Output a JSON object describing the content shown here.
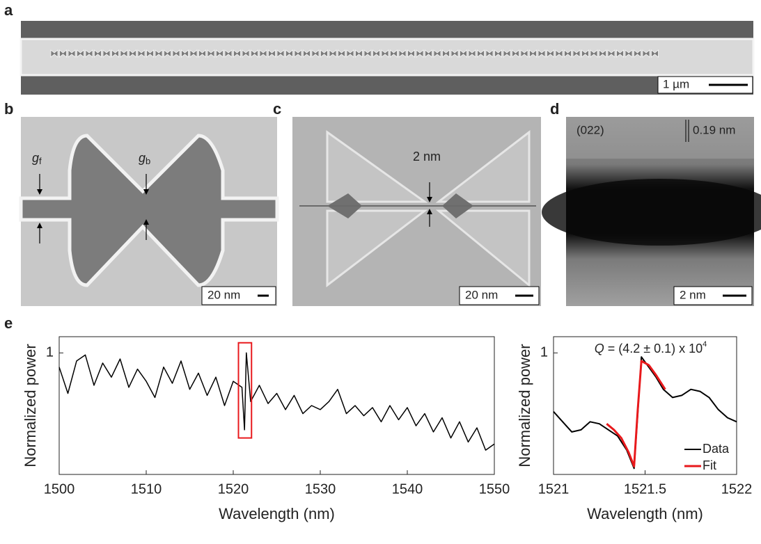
{
  "panels": {
    "a": "a",
    "b": "b",
    "c": "c",
    "d": "d",
    "e": "e"
  },
  "images": {
    "a": {
      "scale_bar": "1 µm"
    },
    "b": {
      "scale_bar": "20 nm",
      "gap_front": {
        "symbol": "g",
        "subscript": "f"
      },
      "gap_bowtie": {
        "symbol": "g",
        "subscript": "b"
      }
    },
    "c": {
      "scale_bar": "20 nm",
      "gap_label": "2 nm"
    },
    "d": {
      "scale_bar": "2 nm",
      "plane": "(022)",
      "spacing": "0.19 nm"
    }
  },
  "chart_data": [
    {
      "type": "line",
      "xlabel": "Wavelength (nm)",
      "ylabel": "Normalized power",
      "xlim": [
        1500,
        1550
      ],
      "ylim": [
        0.4,
        1.08
      ],
      "xticks": [
        1500,
        1510,
        1520,
        1530,
        1540,
        1550
      ],
      "yticks": [
        1
      ],
      "color": "#000000",
      "highlight_x": [
        1520.6,
        1522.1
      ],
      "highlight_y": [
        0.58,
        1.05
      ],
      "highlight_color": "#e8191c",
      "x": [
        1500,
        1501,
        1502,
        1503,
        1504,
        1505,
        1506,
        1507,
        1508,
        1509,
        1510,
        1511,
        1512,
        1513,
        1514,
        1515,
        1516,
        1517,
        1518,
        1519,
        1520,
        1521,
        1521.3,
        1521.5,
        1522,
        1523,
        1524,
        1525,
        1526,
        1527,
        1528,
        1529,
        1530,
        1531,
        1532,
        1533,
        1534,
        1535,
        1536,
        1537,
        1538,
        1539,
        1540,
        1541,
        1542,
        1543,
        1544,
        1545,
        1546,
        1547,
        1548,
        1549,
        1550
      ],
      "values": [
        0.93,
        0.8,
        0.96,
        0.99,
        0.84,
        0.95,
        0.88,
        0.97,
        0.83,
        0.92,
        0.86,
        0.78,
        0.93,
        0.85,
        0.96,
        0.82,
        0.9,
        0.79,
        0.88,
        0.74,
        0.86,
        0.83,
        0.62,
        1.0,
        0.76,
        0.84,
        0.75,
        0.8,
        0.72,
        0.79,
        0.7,
        0.74,
        0.72,
        0.76,
        0.82,
        0.7,
        0.74,
        0.69,
        0.73,
        0.66,
        0.74,
        0.67,
        0.73,
        0.64,
        0.7,
        0.61,
        0.68,
        0.58,
        0.66,
        0.56,
        0.63,
        0.52,
        0.55
      ]
    },
    {
      "type": "line",
      "xlabel": "Wavelength (nm)",
      "ylabel": "Normalized power",
      "xlim": [
        1521,
        1522
      ],
      "ylim": [
        0.4,
        1.08
      ],
      "xticks": [
        1521,
        1521.5,
        1522
      ],
      "yticks": [
        1
      ],
      "annotation": {
        "symbol": "Q",
        "text": "= (4.2 ± 0.1) x 10",
        "exponent": "4"
      },
      "legend": "lower right",
      "series": [
        {
          "name": "Data",
          "color": "#000000",
          "width": 2,
          "x": [
            1521.0,
            1521.05,
            1521.1,
            1521.15,
            1521.2,
            1521.25,
            1521.3,
            1521.35,
            1521.4,
            1521.44,
            1521.46,
            1521.48,
            1521.52,
            1521.56,
            1521.6,
            1521.65,
            1521.7,
            1521.75,
            1521.8,
            1521.85,
            1521.9,
            1521.95,
            1522.0
          ],
          "values": [
            0.71,
            0.66,
            0.61,
            0.62,
            0.66,
            0.65,
            0.62,
            0.59,
            0.52,
            0.43,
            0.7,
            0.98,
            0.93,
            0.88,
            0.82,
            0.78,
            0.79,
            0.82,
            0.81,
            0.78,
            0.72,
            0.68,
            0.66
          ]
        },
        {
          "name": "Fit",
          "color": "#e8191c",
          "width": 3,
          "x": [
            1521.29,
            1521.33,
            1521.37,
            1521.41,
            1521.44,
            1521.46,
            1521.48,
            1521.52,
            1521.56,
            1521.61
          ],
          "values": [
            0.65,
            0.62,
            0.58,
            0.51,
            0.44,
            0.72,
            0.96,
            0.94,
            0.89,
            0.82
          ]
        }
      ]
    }
  ]
}
